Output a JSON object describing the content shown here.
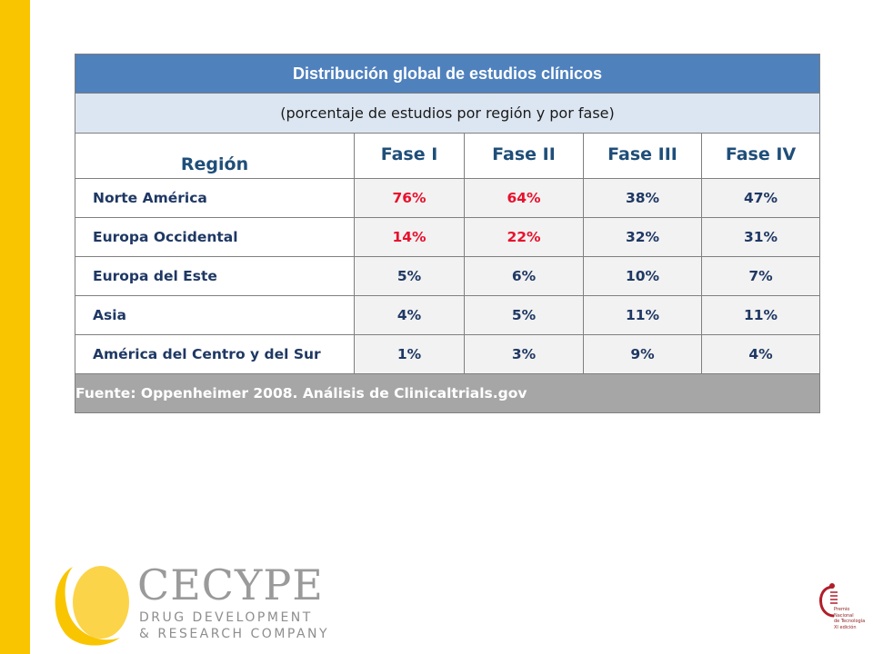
{
  "table": {
    "title": "Distribución global de estudios clínicos",
    "subtitle": "(porcentaje de estudios por región y por fase)",
    "headers": [
      "Región",
      "Fase I",
      "Fase II",
      "Fase III",
      "Fase IV"
    ],
    "rows": [
      {
        "region": "Norte América",
        "values": [
          "76%",
          "64%",
          "38%",
          "47%"
        ]
      },
      {
        "region": "Europa Occidental",
        "values": [
          "14%",
          "22%",
          "32%",
          "31%"
        ]
      },
      {
        "region": "Europa del Este",
        "values": [
          "5%",
          "6%",
          "10%",
          "7%"
        ]
      },
      {
        "region": "Asia",
        "values": [
          "4%",
          "5%",
          "11%",
          "11%"
        ]
      },
      {
        "region": "América del Centro y del Sur",
        "values": [
          "1%",
          "3%",
          "9%",
          "4%"
        ]
      }
    ],
    "source": "Fuente: Oppenheimer 2008. Análisis de Clinicaltrials.gov"
  },
  "logo": {
    "name": "CECYPE",
    "tagline_line1": "DRUG DEVELOPMENT",
    "tagline_line2": "& RESEARCH COMPANY"
  },
  "award": {
    "lines": [
      "Premio",
      "Nacional",
      "de Tecnología",
      "XI edición"
    ]
  },
  "colors": {
    "accent_bar": "#F9C500",
    "title_bg": "#4F81BD",
    "subtitle_bg": "#DCE6F2",
    "header_text": "#1F4E79",
    "highlight_text": "#E8112D",
    "source_bg": "#A6A6A6"
  }
}
